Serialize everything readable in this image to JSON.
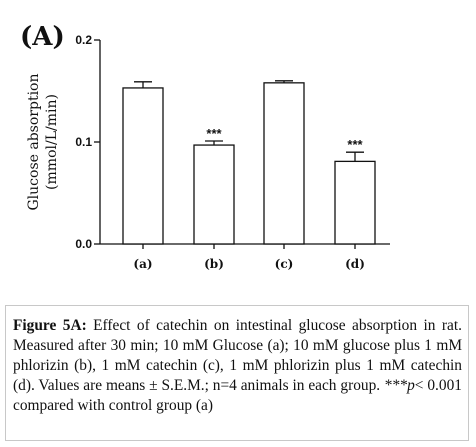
{
  "panel_label": "(A)",
  "chart_data": {
    "type": "bar",
    "categories": [
      "(a)",
      "(b)",
      "(c)",
      "(d)"
    ],
    "values": [
      0.153,
      0.097,
      0.158,
      0.081
    ],
    "errors": [
      0.006,
      0.004,
      0.002,
      0.009
    ],
    "significance": [
      "",
      "***",
      "",
      "***"
    ],
    "ylabel_lines": [
      "Glucose absorption",
      "(mmol/L/min)"
    ],
    "yticks": [
      0.0,
      0.1,
      0.2
    ],
    "ytick_labels": [
      "0.0",
      "0.1",
      "0.2"
    ],
    "ylim": [
      0,
      0.2
    ],
    "bar_fill": "#ffffff",
    "bar_stroke": "#111111"
  },
  "caption": {
    "label": "Figure 5A:",
    "text_1": " Effect of catechin on intestinal glucose absorption in rat. Measured after 30 min; 10 mM Glucose (a); 10 mM glucose plus 1 mM phlorizin (b), 1 mM catechin (c), 1 mM phlorizin plus 1 mM catechin (d). Values are means ± S.E.M.; n=4 animals in each group. ",
    "sig_marker": "***",
    "p_italic": "p",
    "text_2": "< 0.001 compared with control group (a)"
  }
}
